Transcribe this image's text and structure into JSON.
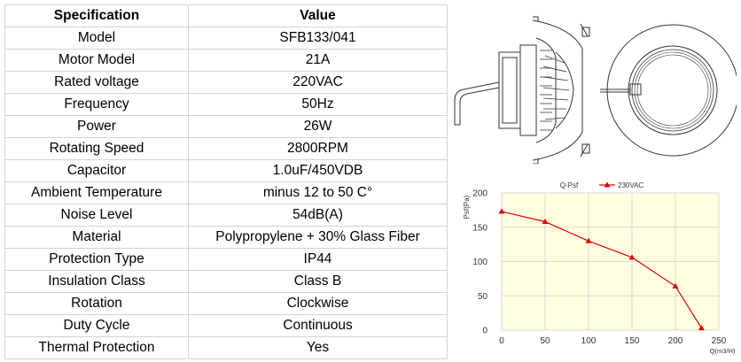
{
  "table": {
    "headers": [
      "Specification",
      "Value"
    ],
    "rows": [
      [
        "Model",
        "SFB133/041"
      ],
      [
        "Motor Model",
        "21A"
      ],
      [
        "Rated voltage",
        "220VAC"
      ],
      [
        "Frequency",
        "50Hz"
      ],
      [
        "Power",
        "26W"
      ],
      [
        "Rotating Speed",
        "2800RPM"
      ],
      [
        "Capacitor",
        "1.0uF/450VDB"
      ],
      [
        "Ambient Temperature",
        "minus 12 to 50 C°"
      ],
      [
        "Noise Level",
        "54dB(A)"
      ],
      [
        "Material",
        "Polypropylene + 30% Glass Fiber"
      ],
      [
        "Protection Type",
        "IP44"
      ],
      [
        "Insulation Class",
        "Class B"
      ],
      [
        "Rotation",
        "Clockwise"
      ],
      [
        "Duty Cycle",
        "Continuous"
      ],
      [
        "Thermal Protection",
        "Yes"
      ]
    ]
  },
  "chart_data": {
    "type": "line",
    "title": "Q-Psf",
    "xlabel": "Q(m3/H)",
    "ylabel": "Psf(Pa)",
    "xlim": [
      0,
      250
    ],
    "ylim": [
      0,
      200
    ],
    "xticks": [
      0,
      50,
      100,
      150,
      200,
      250
    ],
    "yticks": [
      0,
      50,
      100,
      150,
      200
    ],
    "grid": true,
    "legend_position": "top",
    "series": [
      {
        "name": "230VAC",
        "color": "#e00000",
        "marker": "triangle",
        "x": [
          0,
          50,
          100,
          150,
          200,
          230
        ],
        "y": [
          173,
          158,
          130,
          106,
          64,
          3
        ]
      }
    ],
    "plot_background": "#ffffe0"
  }
}
